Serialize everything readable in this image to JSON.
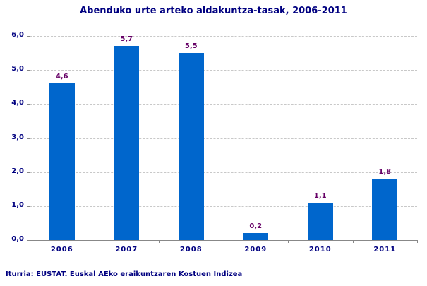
{
  "chart_data": {
    "type": "bar",
    "title": "Abenduko urte arteko aldakuntza-tasak, 2006-2011",
    "categories": [
      "2006",
      "2007",
      "2008",
      "2009",
      "2010",
      "2011"
    ],
    "values": [
      4.6,
      5.7,
      5.5,
      0.2,
      1.1,
      1.8
    ],
    "value_labels": [
      "4,6",
      "5,7",
      "5,5",
      "0,2",
      "1,1",
      "1,8"
    ],
    "xlabel": "",
    "ylabel": "",
    "ylim": [
      0,
      6
    ],
    "yticks": [
      "0,0",
      "1,0",
      "2,0",
      "3,0",
      "4,0",
      "5,0",
      "6,0"
    ],
    "grid": true,
    "legend": null,
    "bar_color": "#0066cc",
    "source": "Iturria: EUSTAT. Euskal AEko eraikuntzaren Kostuen Indizea"
  }
}
